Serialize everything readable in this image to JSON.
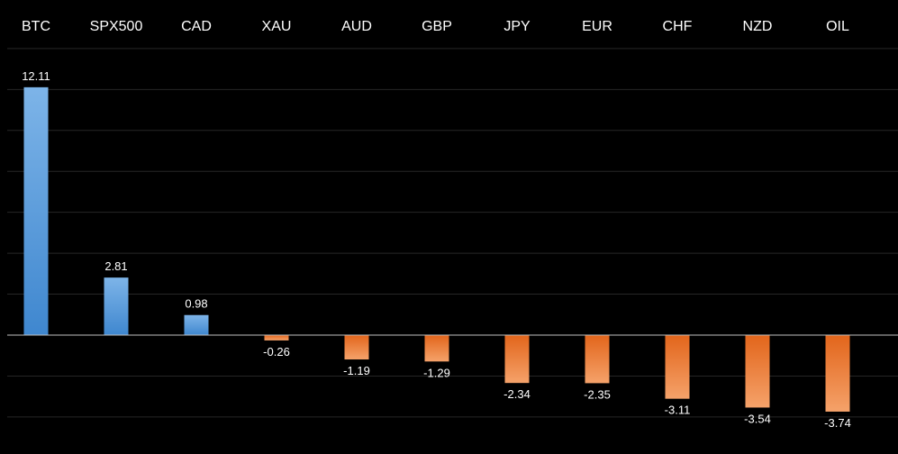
{
  "chart_data": {
    "type": "bar",
    "categories": [
      "BTC",
      "SPX500",
      "CAD",
      "XAU",
      "AUD",
      "GBP",
      "JPY",
      "EUR",
      "CHF",
      "NZD",
      "OIL"
    ],
    "values": [
      12.11,
      2.81,
      0.98,
      -0.26,
      -1.19,
      -1.29,
      -2.34,
      -2.35,
      -3.11,
      -3.54,
      -3.74
    ],
    "value_labels": [
      "12.11",
      "2.81",
      "0.98",
      "-0.26",
      "-1.19",
      "-1.29",
      "-2.34",
      "-2.35",
      "-3.11",
      "-3.54",
      "-3.74"
    ],
    "title": "",
    "xlabel": "",
    "ylabel": "",
    "ylim": [
      -4,
      14
    ],
    "gridlines": [
      -4,
      -2,
      0,
      2,
      4,
      6,
      8,
      10,
      12,
      14
    ],
    "category_labels_position": "top",
    "grid": true,
    "legend": false,
    "colors": {
      "background": "#000000",
      "positive_top": "#7db4e8",
      "positive_bottom": "#3f87cf",
      "negative_top": "#e2651b",
      "negative_bottom": "#f5a26a",
      "gridline": "#262626",
      "baseline": "#bfbfbf",
      "text": "#ffffff"
    }
  }
}
